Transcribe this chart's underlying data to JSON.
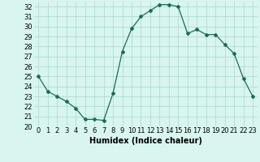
{
  "x": [
    0,
    1,
    2,
    3,
    4,
    5,
    6,
    7,
    8,
    9,
    10,
    11,
    12,
    13,
    14,
    15,
    16,
    17,
    18,
    19,
    20,
    21,
    22,
    23
  ],
  "y": [
    25,
    23.5,
    23,
    22.5,
    21.8,
    20.7,
    20.7,
    20.6,
    23.3,
    27.5,
    29.8,
    31.0,
    31.6,
    32.2,
    32.2,
    32.0,
    29.3,
    29.7,
    29.2,
    29.2,
    28.2,
    27.3,
    24.8,
    23.0
  ],
  "xlabel": "Humidex (Indice chaleur)",
  "xlim": [
    -0.5,
    23.5
  ],
  "ylim": [
    20,
    32.5
  ],
  "yticks": [
    20,
    21,
    22,
    23,
    24,
    25,
    26,
    27,
    28,
    29,
    30,
    31,
    32
  ],
  "xticks": [
    0,
    1,
    2,
    3,
    4,
    5,
    6,
    7,
    8,
    9,
    10,
    11,
    12,
    13,
    14,
    15,
    16,
    17,
    18,
    19,
    20,
    21,
    22,
    23
  ],
  "line_color": "#1a6b5a",
  "marker": "D",
  "marker_size": 2.0,
  "bg_color": "#d8f5ef",
  "grid_color": "#aad8cf",
  "label_fontsize": 7,
  "tick_fontsize": 6
}
